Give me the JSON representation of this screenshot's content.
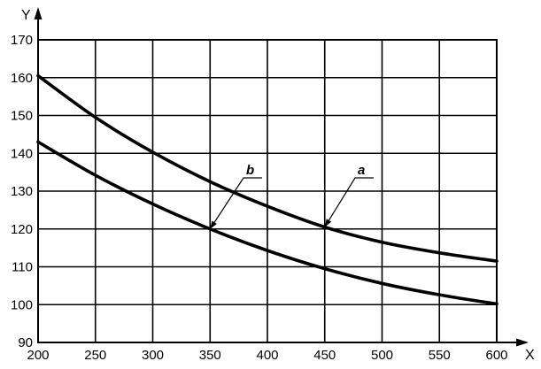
{
  "chart_data": {
    "type": "line",
    "xlabel": "X",
    "ylabel": "Y",
    "xlim": [
      200,
      600
    ],
    "ylim": [
      90,
      170
    ],
    "x_ticks": [
      200,
      250,
      300,
      350,
      400,
      450,
      500,
      550,
      600
    ],
    "y_ticks": [
      90,
      100,
      110,
      120,
      130,
      140,
      150,
      160,
      170
    ],
    "grid": true,
    "series": [
      {
        "name": "a",
        "x": [
          200,
          250,
          300,
          350,
          400,
          450,
          500,
          550,
          600
        ],
        "y": [
          160.5,
          149.5,
          140.3,
          132.5,
          126,
          120.5,
          116.5,
          113.7,
          111.5
        ]
      },
      {
        "name": "b",
        "x": [
          200,
          250,
          300,
          350,
          400,
          450,
          500,
          550,
          600
        ],
        "y": [
          143,
          134.2,
          126.6,
          120,
          114.3,
          109.5,
          105.6,
          102.6,
          100.2
        ]
      }
    ],
    "annotations": [
      {
        "text": "a",
        "points_to": {
          "x": 450,
          "y": 120.5
        }
      },
      {
        "text": "b",
        "points_to": {
          "x": 350,
          "y": 120
        }
      }
    ]
  }
}
